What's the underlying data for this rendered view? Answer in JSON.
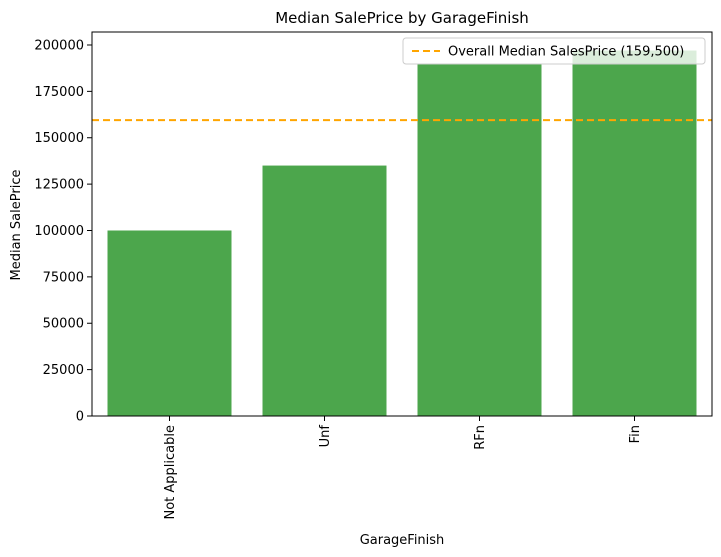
{
  "chart_data": {
    "type": "bar",
    "title": "Median SalePrice by GarageFinish",
    "xlabel": "GarageFinish",
    "ylabel": "Median SalePrice",
    "categories": [
      "Not Applicable",
      "Unf",
      "RFn",
      "Fin"
    ],
    "values": [
      100000,
      135000,
      190000,
      197000
    ],
    "ylim": [
      0,
      207000
    ],
    "yticks": [
      0,
      25000,
      50000,
      75000,
      100000,
      125000,
      150000,
      175000,
      200000
    ],
    "bar_color": "#4ca64c",
    "reference_line": {
      "value": 159500,
      "label": "Overall Median SalesPrice (159,500)",
      "color": "#ffa500",
      "style": "dashed"
    },
    "legend_position": "top-right",
    "grid": false
  }
}
